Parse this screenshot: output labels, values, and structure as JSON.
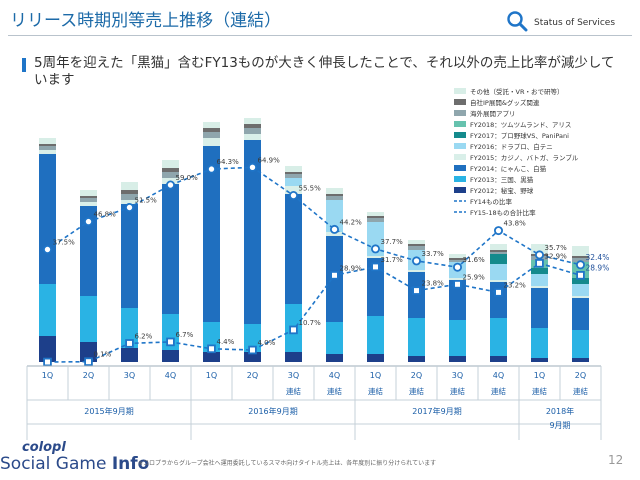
{
  "header": {
    "title": "リリース時期別等売上推移（連結）",
    "status_label": "Status of Services",
    "accent": "#1f75c8"
  },
  "lead_text": "5周年を迎えた「黒猫」含むFY13ものが大きく伸長したことで、それ以外の売上比率が減少しています",
  "footnote": "※コロプラからグループ会社へ運用委託しているスマホ向けタイトル売上は、各年度別に振り分けられています",
  "page_number": "12",
  "logo": {
    "top": "colopl",
    "bottom_regular": "Social Game ",
    "bottom_bold": "Info"
  },
  "chart_data": {
    "type": "bar",
    "stacked": true,
    "categories": [
      "1Q",
      "2Q",
      "3Q",
      "4Q",
      "1Q",
      "2Q",
      "3Q",
      "4Q",
      "1Q",
      "2Q",
      "3Q",
      "4Q",
      "1Q",
      "2Q"
    ],
    "sub_labels": [
      "",
      "",
      "",
      "",
      "",
      "",
      "連結",
      "連結",
      "連結",
      "連結",
      "連結",
      "連結",
      "連結",
      "連結"
    ],
    "periods": [
      {
        "label": "2015年9月期",
        "start": 0,
        "end": 3
      },
      {
        "label": "2016年9月期",
        "start": 4,
        "end": 7
      },
      {
        "label": "2017年9月期",
        "start": 8,
        "end": 11
      },
      {
        "label": "2018年\n9月期",
        "start": 12,
        "end": 13
      }
    ],
    "series": [
      {
        "name": "FY2012：秘宝、野球",
        "color": "#1d3f8a",
        "values": [
          13,
          10,
          7,
          6,
          5,
          5,
          5,
          4,
          4,
          3,
          3,
          3,
          2,
          2
        ]
      },
      {
        "name": "FY2013：三国、黒猫",
        "color": "#2ab3e4",
        "values": [
          26,
          23,
          20,
          18,
          15,
          14,
          24,
          16,
          19,
          19,
          18,
          19,
          15,
          14
        ]
      },
      {
        "name": "FY2014：にゃんこ、白猫",
        "color": "#1f6fbf",
        "values": [
          65,
          45,
          52,
          65,
          88,
          92,
          55,
          43,
          29,
          23,
          20,
          18,
          20,
          16
        ]
      },
      {
        "name": "FY2015：カジノ、バトガ、ランブル",
        "color": "#d9efe9",
        "values": [
          2,
          2,
          2,
          3,
          4,
          3,
          4,
          2,
          1,
          1,
          1,
          1,
          1,
          1
        ]
      },
      {
        "name": "FY2016：ドラプロ、白テニ",
        "color": "#9ad9f2",
        "values": [
          0,
          0,
          0,
          0,
          0,
          0,
          4,
          16,
          17,
          10,
          8,
          8,
          6,
          6
        ]
      },
      {
        "name": "FY2017：プロ野球VS、PaniPani",
        "color": "#148a8c",
        "values": [
          0,
          0,
          0,
          0,
          0,
          0,
          0,
          0,
          0,
          0,
          0,
          5,
          3,
          3
        ]
      },
      {
        "name": "FY2018：ツムツムランド、アリス",
        "color": "#66c2ae",
        "values": [
          0,
          0,
          0,
          0,
          0,
          0,
          0,
          0,
          0,
          0,
          0,
          0,
          4,
          8
        ]
      },
      {
        "name": "海外展開アプリ",
        "color": "#8fa6ad",
        "values": [
          2,
          2,
          3,
          3,
          3,
          3,
          2,
          2,
          2,
          2,
          1,
          1,
          2,
          2
        ]
      },
      {
        "name": "自社IP展開&グッズ関連",
        "color": "#6d6d6d",
        "values": [
          1,
          1,
          2,
          2,
          2,
          2,
          1,
          1,
          1,
          1,
          1,
          1,
          1,
          1
        ]
      },
      {
        "name": "その他（受託・VR・おで研等）",
        "color": "#d8eee7",
        "values": [
          3,
          3,
          4,
          4,
          3,
          3,
          3,
          3,
          2,
          2,
          2,
          3,
          5,
          5
        ]
      }
    ],
    "lines": [
      {
        "name": "FY14もの比率",
        "color": "#1f75c8",
        "dash": "4,3",
        "marker": "circle",
        "values": [
          37.5,
          46.8,
          51.5,
          59.0,
          64.3,
          64.9,
          55.5,
          44.2,
          37.7,
          33.7,
          31.6,
          43.8,
          35.7,
          32.4
        ]
      },
      {
        "name": "FY15-18もの合計比率",
        "color": "#1f75c8",
        "dash": "4,3",
        "marker": "square",
        "values": [
          0.0,
          0.1,
          6.2,
          6.7,
          4.4,
          4.0,
          10.7,
          28.9,
          31.7,
          23.8,
          25.9,
          23.2,
          32.9,
          28.9
        ]
      }
    ],
    "line_labels": [
      [
        "37.5%",
        "46.8%",
        "51.5%",
        "59.0%",
        "64.3%",
        "64.9%",
        "55.5%",
        "44.2%",
        "37.7%",
        "33.7%",
        "31.6%",
        "43.8%",
        "35.7%",
        "32.4%"
      ],
      [
        "",
        "0.1%",
        "6.2%",
        "6.7%",
        "4.4%",
        "4.0%",
        "10.7%",
        "28.9%",
        "31.7%",
        "23.8%",
        "25.9%",
        "23.2%",
        "32.9%",
        "28.9%"
      ]
    ],
    "legend_position": "top-right",
    "grid": false
  }
}
